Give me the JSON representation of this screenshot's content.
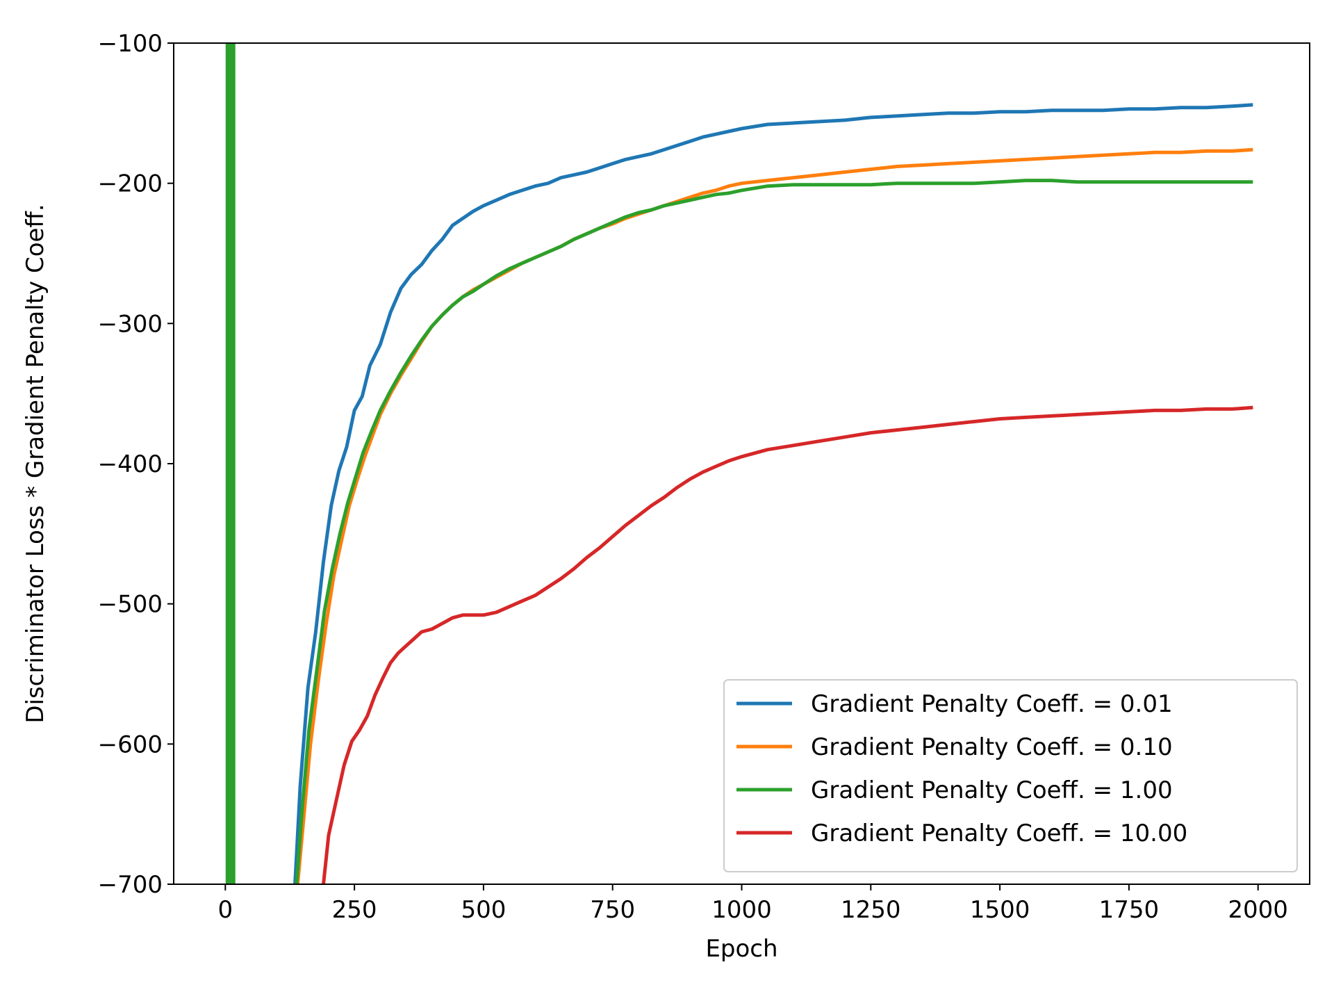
{
  "chart_data": {
    "type": "line",
    "title": "",
    "xlabel": "Epoch",
    "ylabel": "Discriminator Loss * Gradient Penalty Coeff.",
    "xlim": [
      -100,
      2100
    ],
    "ylim": [
      -700,
      -100
    ],
    "xticks": [
      0,
      250,
      500,
      750,
      1000,
      1250,
      1500,
      1750,
      2000
    ],
    "yticks": [
      -700,
      -600,
      -500,
      -400,
      -300,
      -200,
      -100
    ],
    "xtick_labels": [
      "0",
      "250",
      "500",
      "750",
      "1000",
      "1250",
      "1500",
      "1750",
      "2000"
    ],
    "ytick_labels": [
      "−700",
      "−600",
      "−500",
      "−400",
      "−300",
      "−200",
      "−100"
    ],
    "grid": false,
    "legend_position": "lower-right",
    "series": [
      {
        "name": "Gradient Penalty Coeff. = 0.01",
        "color": "#1f77b4",
        "x": [
          135,
          145,
          160,
          175,
          190,
          205,
          220,
          235,
          250,
          265,
          280,
          300,
          320,
          340,
          360,
          380,
          400,
          420,
          440,
          460,
          480,
          500,
          525,
          550,
          575,
          600,
          625,
          650,
          675,
          700,
          725,
          750,
          775,
          800,
          825,
          850,
          875,
          900,
          925,
          950,
          975,
          1000,
          1050,
          1100,
          1150,
          1200,
          1250,
          1300,
          1350,
          1400,
          1450,
          1500,
          1550,
          1600,
          1650,
          1700,
          1750,
          1800,
          1850,
          1900,
          1950,
          1990
        ],
        "y": [
          -700,
          -630,
          -560,
          -520,
          -470,
          -430,
          -405,
          -388,
          -362,
          -352,
          -330,
          -315,
          -292,
          -275,
          -265,
          -258,
          -248,
          -240,
          -230,
          -225,
          -220,
          -216,
          -212,
          -208,
          -205,
          -202,
          -200,
          -196,
          -194,
          -192,
          -189,
          -186,
          -183,
          -181,
          -179,
          -176,
          -173,
          -170,
          -167,
          -165,
          -163,
          -161,
          -158,
          -157,
          -156,
          -155,
          -153,
          -152,
          -151,
          -150,
          -150,
          -149,
          -149,
          -148,
          -148,
          -148,
          -147,
          -147,
          -146,
          -146,
          -145,
          -144
        ]
      },
      {
        "name": "Gradient Penalty Coeff. = 0.10",
        "color": "#ff7f0e",
        "x": [
          140,
          150,
          165,
          180,
          195,
          210,
          225,
          240,
          255,
          270,
          285,
          300,
          320,
          340,
          360,
          380,
          400,
          420,
          440,
          460,
          480,
          500,
          525,
          550,
          575,
          600,
          625,
          650,
          675,
          700,
          725,
          750,
          775,
          800,
          825,
          850,
          875,
          900,
          925,
          950,
          975,
          1000,
          1050,
          1100,
          1150,
          1200,
          1250,
          1300,
          1350,
          1400,
          1450,
          1500,
          1550,
          1600,
          1650,
          1700,
          1750,
          1800,
          1850,
          1900,
          1950,
          1990
        ],
        "y": [
          -700,
          -660,
          -600,
          -555,
          -515,
          -480,
          -455,
          -430,
          -412,
          -395,
          -380,
          -365,
          -350,
          -337,
          -325,
          -313,
          -302,
          -294,
          -287,
          -281,
          -276,
          -272,
          -267,
          -262,
          -257,
          -253,
          -249,
          -245,
          -240,
          -236,
          -232,
          -229,
          -225,
          -222,
          -219,
          -216,
          -213,
          -210,
          -207,
          -205,
          -202,
          -200,
          -198,
          -196,
          -194,
          -192,
          -190,
          -188,
          -187,
          -186,
          -185,
          -184,
          -183,
          -182,
          -181,
          -180,
          -179,
          -178,
          -178,
          -177,
          -177,
          -176
        ]
      },
      {
        "name": "Gradient Penalty Coeff. = 1.00",
        "color": "#2ca02c",
        "x": [
          138,
          148,
          162,
          178,
          192,
          207,
          222,
          237,
          252,
          267,
          282,
          300,
          320,
          340,
          360,
          380,
          400,
          420,
          440,
          460,
          480,
          500,
          525,
          550,
          575,
          600,
          625,
          650,
          675,
          700,
          725,
          750,
          775,
          800,
          825,
          850,
          875,
          900,
          925,
          950,
          975,
          1000,
          1050,
          1100,
          1150,
          1200,
          1250,
          1300,
          1350,
          1400,
          1450,
          1500,
          1550,
          1600,
          1650,
          1700,
          1750,
          1800,
          1850,
          1900,
          1950,
          1990
        ],
        "y": [
          -700,
          -650,
          -590,
          -545,
          -505,
          -475,
          -450,
          -428,
          -410,
          -392,
          -378,
          -362,
          -348,
          -335,
          -323,
          -312,
          -302,
          -294,
          -287,
          -281,
          -277,
          -272,
          -266,
          -261,
          -257,
          -253,
          -249,
          -245,
          -240,
          -236,
          -232,
          -228,
          -224,
          -221,
          -219,
          -216,
          -214,
          -212,
          -210,
          -208,
          -207,
          -205,
          -202,
          -201,
          -201,
          -201,
          -201,
          -200,
          -200,
          -200,
          -200,
          -199,
          -198,
          -198,
          -199,
          -199,
          -199,
          -199,
          -199,
          -199,
          -199,
          -199
        ]
      },
      {
        "name": "Gradient Penalty Coeff. = 10.00",
        "color": "#d62728",
        "x": [
          190,
          200,
          215,
          230,
          245,
          260,
          275,
          290,
          305,
          320,
          335,
          350,
          365,
          380,
          400,
          420,
          440,
          460,
          480,
          500,
          525,
          550,
          575,
          600,
          625,
          650,
          675,
          700,
          725,
          750,
          775,
          800,
          825,
          850,
          875,
          900,
          925,
          950,
          975,
          1000,
          1050,
          1100,
          1150,
          1200,
          1250,
          1300,
          1350,
          1400,
          1450,
          1500,
          1550,
          1600,
          1650,
          1700,
          1750,
          1800,
          1850,
          1900,
          1950,
          1990
        ],
        "y": [
          -700,
          -665,
          -640,
          -615,
          -598,
          -590,
          -580,
          -565,
          -553,
          -542,
          -535,
          -530,
          -525,
          -520,
          -518,
          -514,
          -510,
          -508,
          -508,
          -508,
          -506,
          -502,
          -498,
          -494,
          -488,
          -482,
          -475,
          -467,
          -460,
          -452,
          -444,
          -437,
          -430,
          -424,
          -417,
          -411,
          -406,
          -402,
          -398,
          -395,
          -390,
          -387,
          -384,
          -381,
          -378,
          -376,
          -374,
          -372,
          -370,
          -368,
          -367,
          -366,
          -365,
          -364,
          -363,
          -362,
          -362,
          -361,
          -361,
          -360
        ]
      }
    ],
    "vertical_marker": {
      "x": 10,
      "color": "#2ca02c"
    }
  }
}
